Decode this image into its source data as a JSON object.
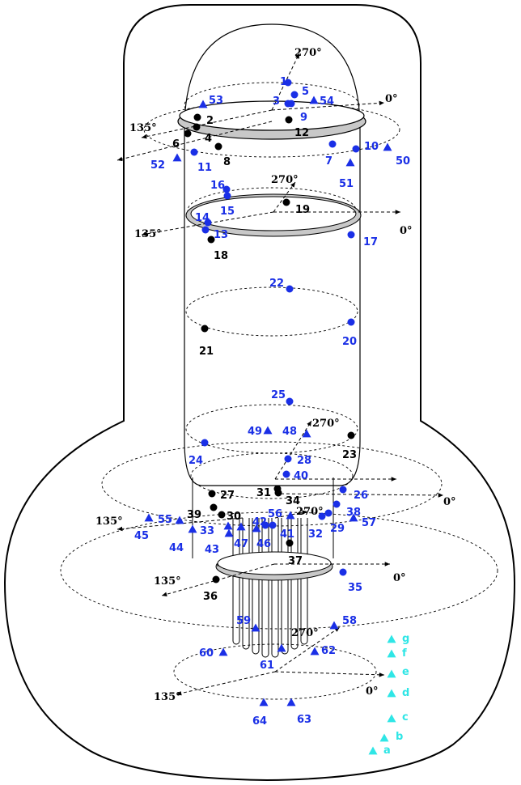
{
  "colors": {
    "blue": "#1a2fe6",
    "black": "#000000",
    "cyan": "#2fe6e6",
    "ring": "#c8c8c8"
  },
  "angle_labels": [
    "270°",
    "0°",
    "135°",
    "270°",
    "0°",
    "135°",
    "270°",
    "0°",
    "135°",
    "270°",
    "0°",
    "135°",
    "270°",
    "0°",
    "135°",
    "0°",
    "135°"
  ],
  "points": [
    {
      "label": "1",
      "kind": "blue-dot"
    },
    {
      "label": "2",
      "kind": "black-dot"
    },
    {
      "label": "3",
      "kind": "blue-dot"
    },
    {
      "label": "4",
      "kind": "black-dot"
    },
    {
      "label": "5",
      "kind": "blue-dot"
    },
    {
      "label": "6",
      "kind": "black-dot"
    },
    {
      "label": "7",
      "kind": "blue-dot"
    },
    {
      "label": "8",
      "kind": "black-dot"
    },
    {
      "label": "9",
      "kind": "blue-dot"
    },
    {
      "label": "10",
      "kind": "blue-dot"
    },
    {
      "label": "11",
      "kind": "blue-dot"
    },
    {
      "label": "12",
      "kind": "black-dot"
    },
    {
      "label": "13",
      "kind": "blue-dot"
    },
    {
      "label": "14",
      "kind": "blue-dot"
    },
    {
      "label": "15",
      "kind": "blue-dot"
    },
    {
      "label": "16",
      "kind": "blue-dot"
    },
    {
      "label": "17",
      "kind": "blue-dot"
    },
    {
      "label": "18",
      "kind": "black-dot"
    },
    {
      "label": "19",
      "kind": "black-dot"
    },
    {
      "label": "20",
      "kind": "blue-dot"
    },
    {
      "label": "21",
      "kind": "black-dot"
    },
    {
      "label": "22",
      "kind": "blue-dot"
    },
    {
      "label": "23",
      "kind": "black-dot"
    },
    {
      "label": "24",
      "kind": "blue-dot"
    },
    {
      "label": "25",
      "kind": "blue-dot"
    },
    {
      "label": "26",
      "kind": "blue-dot"
    },
    {
      "label": "27",
      "kind": "black-dot"
    },
    {
      "label": "28",
      "kind": "blue-dot"
    },
    {
      "label": "29",
      "kind": "blue-dot"
    },
    {
      "label": "30",
      "kind": "black-dot"
    },
    {
      "label": "31",
      "kind": "black-dot"
    },
    {
      "label": "32",
      "kind": "blue-dot"
    },
    {
      "label": "33",
      "kind": "blue-triangle"
    },
    {
      "label": "34",
      "kind": "black-dot"
    },
    {
      "label": "35",
      "kind": "blue-dot"
    },
    {
      "label": "36",
      "kind": "black-dot"
    },
    {
      "label": "37",
      "kind": "black-dot"
    },
    {
      "label": "38",
      "kind": "blue-dot"
    },
    {
      "label": "39",
      "kind": "black-dot"
    },
    {
      "label": "40",
      "kind": "blue-dot"
    },
    {
      "label": "41",
      "kind": "blue-dot"
    },
    {
      "label": "42",
      "kind": "blue-dot"
    },
    {
      "label": "43",
      "kind": "blue-triangle"
    },
    {
      "label": "44",
      "kind": "blue-triangle"
    },
    {
      "label": "45",
      "kind": "blue-triangle"
    },
    {
      "label": "46",
      "kind": "blue-triangle"
    },
    {
      "label": "47",
      "kind": "blue-triangle"
    },
    {
      "label": "48",
      "kind": "blue-triangle"
    },
    {
      "label": "49",
      "kind": "blue-triangle"
    },
    {
      "label": "50",
      "kind": "blue-triangle"
    },
    {
      "label": "51",
      "kind": "blue-triangle"
    },
    {
      "label": "52",
      "kind": "blue-triangle"
    },
    {
      "label": "53",
      "kind": "blue-triangle"
    },
    {
      "label": "54",
      "kind": "blue-triangle"
    },
    {
      "label": "55",
      "kind": "blue-triangle"
    },
    {
      "label": "56",
      "kind": "blue-triangle"
    },
    {
      "label": "57",
      "kind": "blue-triangle"
    },
    {
      "label": "58",
      "kind": "blue-triangle"
    },
    {
      "label": "59",
      "kind": "blue-triangle"
    },
    {
      "label": "60",
      "kind": "blue-triangle"
    },
    {
      "label": "61",
      "kind": "blue-triangle"
    },
    {
      "label": "62",
      "kind": "blue-triangle"
    },
    {
      "label": "63",
      "kind": "blue-triangle"
    },
    {
      "label": "64",
      "kind": "blue-triangle"
    }
  ],
  "legend": [
    {
      "label": "g"
    },
    {
      "label": "f"
    },
    {
      "label": "e"
    },
    {
      "label": "d"
    },
    {
      "label": "c"
    },
    {
      "label": "b"
    },
    {
      "label": "a"
    }
  ]
}
